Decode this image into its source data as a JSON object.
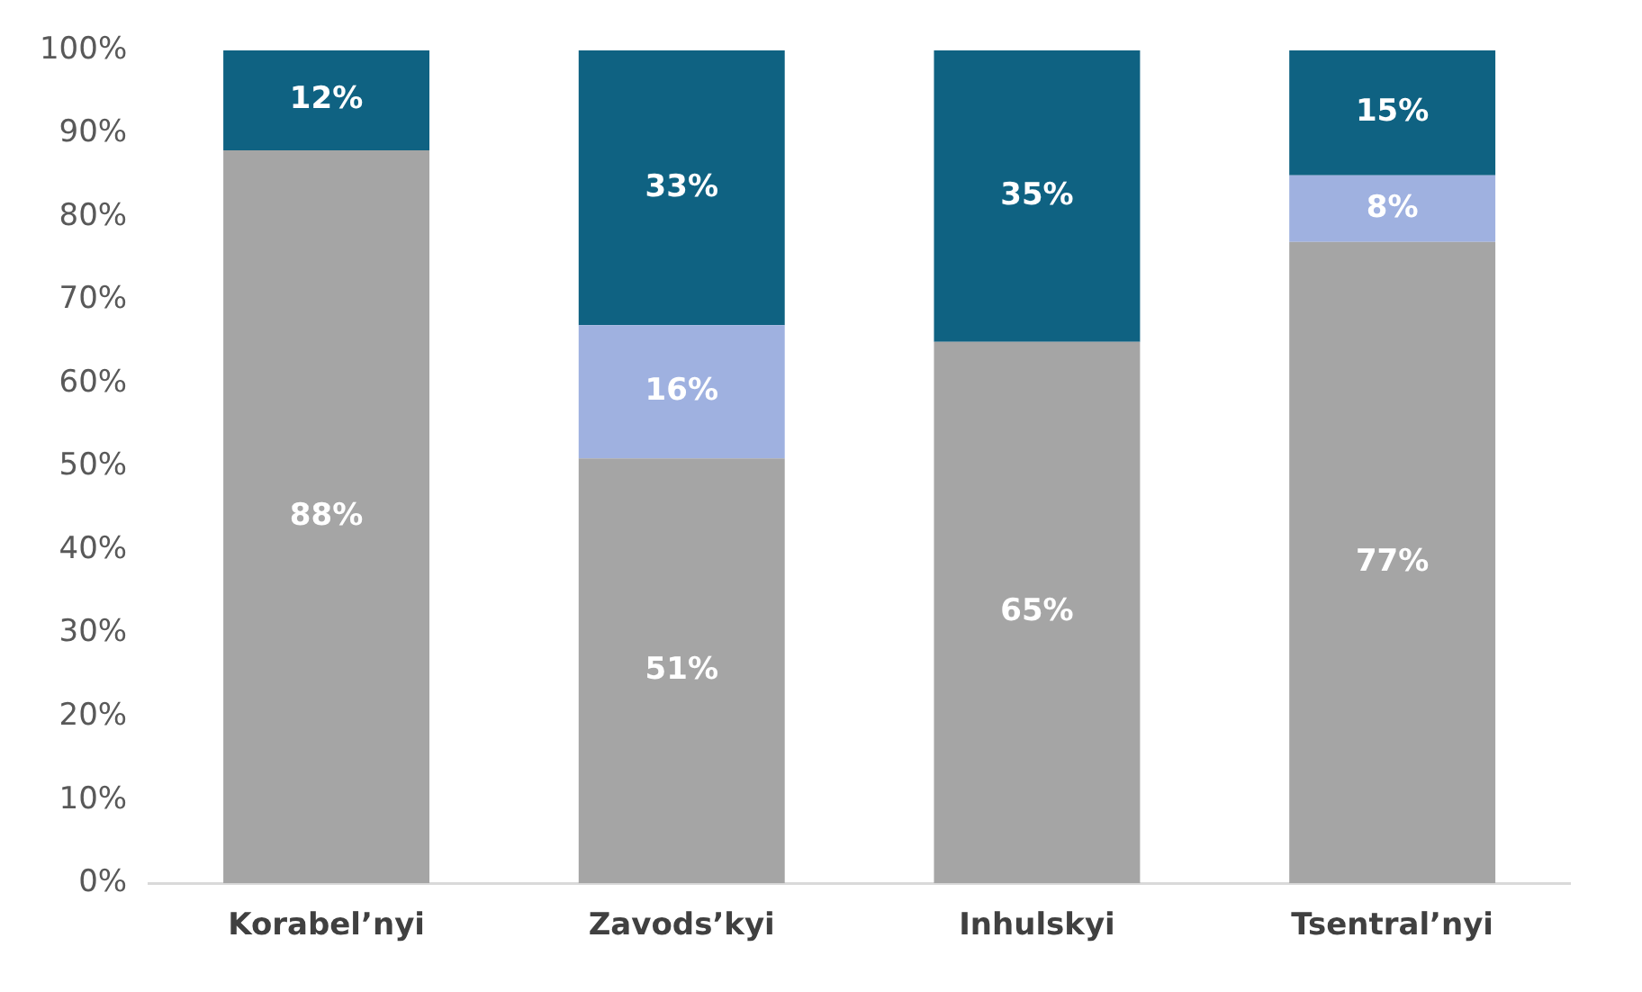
{
  "chart_data": {
    "type": "bar",
    "stacked": true,
    "categories": [
      "Korabel’nyi",
      "Zavods’kyi",
      "Inhulskyi",
      "Tsentral’nyi"
    ],
    "series": [
      {
        "color": "#a5a5a5",
        "values": [
          88,
          51,
          65,
          77
        ],
        "value_labels": [
          "88%",
          "51%",
          "65%",
          "77%"
        ]
      },
      {
        "color": "#9fb1e0",
        "values": [
          null,
          16,
          null,
          8
        ],
        "value_labels": [
          null,
          "16%",
          null,
          "8%"
        ]
      },
      {
        "color": "#0f6282",
        "values": [
          12,
          33,
          35,
          15
        ],
        "value_labels": [
          "12%",
          "33%",
          "35%",
          "15%"
        ]
      }
    ],
    "ylim": [
      0,
      100
    ],
    "yticks": [
      {
        "value": 0,
        "label": "0%"
      },
      {
        "value": 10,
        "label": "10%"
      },
      {
        "value": 20,
        "label": "20%"
      },
      {
        "value": 30,
        "label": "30%"
      },
      {
        "value": 40,
        "label": "40%"
      },
      {
        "value": 50,
        "label": "50%"
      },
      {
        "value": 60,
        "label": "60%"
      },
      {
        "value": 70,
        "label": "70%"
      },
      {
        "value": 80,
        "label": "80%"
      },
      {
        "value": 90,
        "label": "90%"
      },
      {
        "value": 100,
        "label": "100%"
      }
    ],
    "grid": false,
    "legend": false
  }
}
